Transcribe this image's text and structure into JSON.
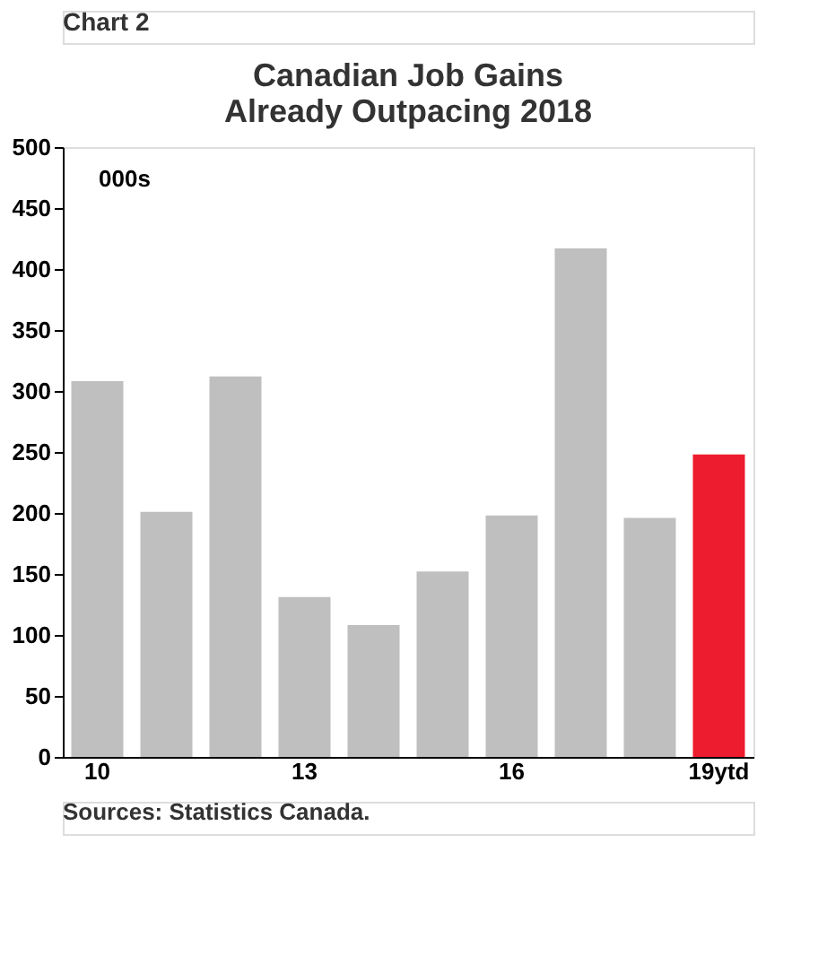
{
  "chart_data": {
    "type": "bar",
    "title": "Canadian Job Gains Already Outpacing 2018",
    "ylabel": "000s",
    "categories": [
      "10",
      null,
      null,
      "13",
      null,
      null,
      "16",
      null,
      null,
      "19ytd"
    ],
    "values": [
      308,
      201,
      312,
      131,
      108,
      152,
      198,
      417,
      196,
      248
    ],
    "colors": [
      "#bfbfbf",
      "#bfbfbf",
      "#bfbfbf",
      "#bfbfbf",
      "#bfbfbf",
      "#bfbfbf",
      "#bfbfbf",
      "#bfbfbf",
      "#bfbfbf",
      "#ed1c2e"
    ],
    "ylim": [
      0,
      500
    ],
    "yticks": [
      0,
      50,
      100,
      150,
      200,
      250,
      300,
      350,
      400,
      450,
      500
    ],
    "grid": false,
    "annotations": [
      "Chart 2",
      "Sources: Statistics Canada."
    ]
  }
}
